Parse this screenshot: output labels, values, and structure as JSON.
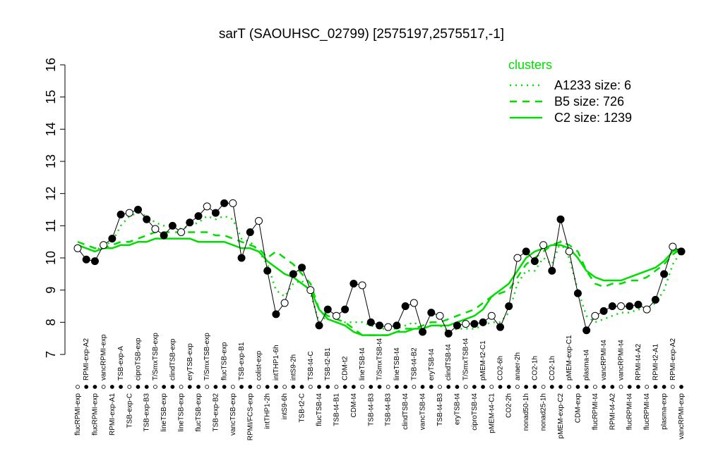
{
  "chart_data": {
    "type": "line",
    "title": "sarT (SAOUHSC_02799) [2575197,2575517,-1]",
    "categories": [
      "flucRPMI-exp",
      "RPMI-exp-A2",
      "flucRPMI-exp",
      "vancRPMI-exp",
      "RPMI-exp-A1",
      "TSB-exp-A",
      "TSB-exp-C",
      "ciproTSB-exp",
      "TSB-exp-B3",
      "T/SmxTSB-exp",
      "lineTSB-exp",
      "clindTSB-exp",
      "lineTSB-exp",
      "eryTSB-exp",
      "flucTSB-exp",
      "T/SmxTSB-exp",
      "TSB-exp-B2",
      "flucTSB-exp",
      "vancTSB-exp",
      "TSB-exp-B1",
      "RPMI/FCS-exp",
      "colist-exp",
      "intTHP1-2h",
      "intTHP1-6h",
      "intS9-6h",
      "intS9-2h",
      "TSB-t2-C",
      "TSB-t4-C",
      "flucTSB-t4",
      "TSB-t2-B1",
      "TSB-t4-B1",
      "CDM-t2",
      "CDM-t4",
      "lineTSB-t4",
      "TSB-t4-B3",
      "T/SmxTSB-t4",
      "TSB-t4-B3",
      "lineTSB-t4",
      "clindTSB-t4",
      "TSB-t4-B2",
      "vancTSB-t4",
      "eryTSB-t4",
      "TSB-t4-B3",
      "clindTSB-t4",
      "eryTSB-t4",
      "T/SmxTSB-t4",
      "ciproTSB-t4",
      "pMEM-t2-C1",
      "pMEM-t4-C1",
      "CO2-6h",
      "CO2-2h",
      "anaer-2h",
      "nonad50-1h",
      "CO2-1h",
      "nonad25-1h",
      "CO2-1h",
      "pMEM-exp-C2",
      "pMEM-exp-C1",
      "CDM-exp",
      "plasma-t4",
      "flucRPMI-t4",
      "vancRPMI-t4",
      "RPMI-t4-A2",
      "vancRPMI-t4",
      "flucRPMI-t4",
      "RPMI-t4-A2",
      "flucRPMI-t4",
      "RPMI-t2-A1",
      "plasma-exp",
      "RPMI-exp-A2",
      "vancRPMI-exp"
    ],
    "values": [
      10.3,
      9.95,
      9.9,
      10.4,
      10.6,
      11.35,
      11.4,
      11.5,
      11.2,
      10.9,
      10.7,
      11.0,
      10.8,
      11.1,
      11.3,
      11.6,
      11.4,
      11.7,
      11.7,
      10.0,
      10.8,
      11.15,
      9.6,
      8.25,
      8.6,
      9.5,
      9.7,
      9.0,
      7.9,
      8.4,
      8.2,
      8.4,
      9.2,
      9.15,
      8.0,
      7.9,
      7.85,
      7.9,
      8.5,
      8.6,
      7.7,
      8.3,
      8.2,
      7.65,
      7.9,
      7.95,
      7.95,
      8.0,
      8.2,
      7.85,
      8.5,
      10.0,
      10.2,
      9.9,
      10.4,
      9.6,
      11.2,
      10.2,
      8.9,
      7.75,
      8.2,
      8.35,
      8.5,
      8.5,
      8.5,
      8.55,
      8.4,
      8.7,
      9.5,
      10.35,
      10.2
    ],
    "color": "#000000",
    "series": [
      {
        "name": "A1233 size: 6",
        "color": "#00dd00",
        "linestyle": "dotted",
        "values": [
          10.4,
          10.3,
          10.2,
          10.4,
          10.5,
          11.0,
          11.3,
          11.4,
          11.3,
          11.1,
          11.0,
          11.0,
          10.9,
          11.0,
          11.1,
          11.3,
          11.2,
          11.3,
          11.2,
          10.6,
          10.5,
          10.2,
          9.8,
          9.0,
          8.8,
          9.2,
          9.3,
          8.9,
          8.0,
          8.2,
          8.1,
          8.0,
          8.0,
          8.0,
          7.9,
          7.8,
          7.8,
          7.8,
          7.9,
          8.0,
          7.8,
          7.9,
          7.9,
          7.7,
          7.8,
          7.8,
          7.8,
          7.9,
          8.0,
          8.0,
          8.3,
          9.2,
          9.6,
          9.6,
          10.0,
          9.8,
          10.5,
          10.0,
          9.0,
          8.2,
          8.0,
          8.1,
          8.2,
          8.3,
          8.3,
          8.4,
          8.4,
          8.6,
          9.0,
          9.8,
          10.2
        ]
      },
      {
        "name": "B5 size: 726",
        "color": "#00dd00",
        "linestyle": "dashed",
        "values": [
          10.5,
          10.4,
          10.3,
          10.3,
          10.4,
          10.5,
          10.5,
          10.6,
          10.7,
          10.8,
          10.8,
          10.8,
          10.8,
          10.8,
          10.8,
          10.8,
          10.7,
          10.7,
          10.6,
          10.5,
          10.4,
          10.3,
          10.0,
          10.2,
          10.0,
          9.8,
          9.5,
          9.2,
          8.4,
          8.2,
          8.1,
          8.0,
          7.8,
          7.6,
          7.6,
          7.6,
          7.6,
          7.7,
          7.8,
          7.8,
          7.9,
          8.0,
          8.0,
          8.1,
          8.2,
          8.3,
          8.4,
          8.6,
          8.8,
          8.9,
          9.0,
          9.4,
          9.8,
          10.0,
          10.2,
          10.4,
          10.5,
          10.4,
          10.2,
          9.6,
          9.2,
          9.1,
          9.2,
          9.2,
          9.3,
          9.3,
          9.4,
          9.6,
          9.8,
          10.1,
          10.3
        ]
      },
      {
        "name": "C2 size: 1239",
        "color": "#00dd00",
        "linestyle": "solid",
        "values": [
          10.4,
          10.3,
          10.2,
          10.3,
          10.3,
          10.4,
          10.4,
          10.5,
          10.5,
          10.6,
          10.6,
          10.6,
          10.6,
          10.6,
          10.5,
          10.5,
          10.5,
          10.5,
          10.4,
          10.3,
          10.3,
          10.2,
          9.9,
          9.7,
          9.5,
          9.4,
          9.2,
          9.0,
          8.4,
          8.1,
          8.0,
          7.9,
          7.7,
          7.6,
          7.6,
          7.6,
          7.6,
          7.7,
          7.7,
          7.8,
          7.8,
          7.9,
          7.9,
          7.9,
          8.0,
          8.1,
          8.2,
          8.4,
          8.8,
          9.0,
          9.2,
          9.6,
          10.0,
          10.2,
          10.3,
          10.4,
          10.4,
          10.3,
          10.0,
          9.6,
          9.4,
          9.3,
          9.3,
          9.3,
          9.4,
          9.5,
          9.6,
          9.7,
          9.9,
          10.2,
          10.3
        ]
      }
    ],
    "legend_title": "clusters",
    "ylim": [
      7,
      16
    ],
    "yticks": [
      7,
      8,
      9,
      10,
      11,
      12,
      13,
      14,
      15,
      16
    ]
  }
}
